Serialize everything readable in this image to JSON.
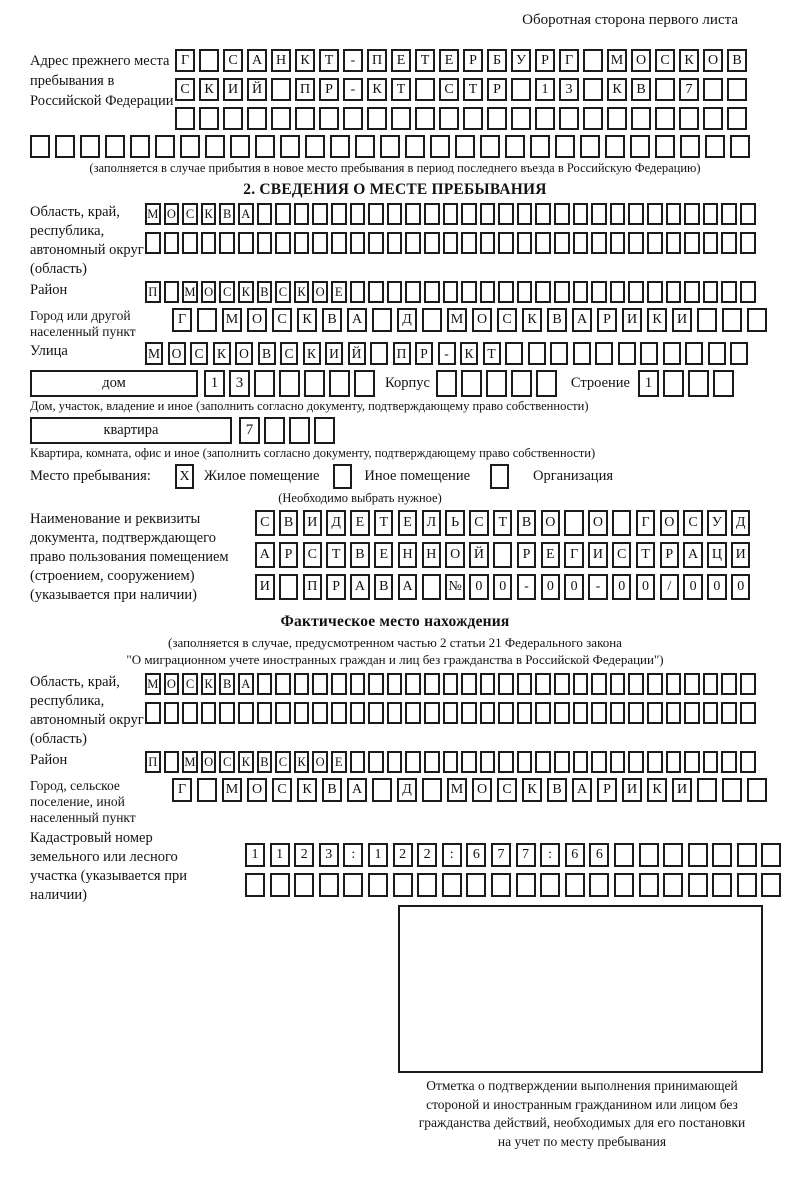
{
  "page": {
    "header_note": "Оборотная сторона первого листа"
  },
  "prev_address": {
    "label": "Адрес прежнего места пребывания в Российской Федерации",
    "rows": [
      {
        "value": "Г САНКТ-ПЕТЕРБУРГ МОСКОВ",
        "boxes": 24
      },
      {
        "value": "СКИЙ ПР-КТ СТР 13 КВ 7",
        "boxes": 24
      },
      {
        "value": "",
        "boxes": 24
      },
      {
        "value": "",
        "boxes": 29
      }
    ],
    "caption": "(заполняется в случае прибытия в новое место пребывания в период последнего въезда в Российскую Федерацию)"
  },
  "section2": {
    "title": "2. СВЕДЕНИЯ О МЕСТЕ ПРЕБЫВАНИЯ",
    "region": {
      "label": "Область, край, республика, автономный округ (область)",
      "rows": [
        {
          "value": "МОСКВА",
          "boxes": 33
        },
        {
          "value": "",
          "boxes": 33
        }
      ]
    },
    "district": {
      "label": "Район",
      "row": {
        "value": "П МОСКВСКОЕ",
        "boxes": 33
      }
    },
    "city": {
      "label": "Город или другой населенный пункт",
      "row": {
        "value": "Г МОСКВА Д МОСКВАРИКИ",
        "boxes": 24
      }
    },
    "street": {
      "label": "Улица",
      "row": {
        "value": "МОСКОВСКИЙ ПР-КТ",
        "boxes": 27
      }
    },
    "house": {
      "box_label": "дом",
      "row": {
        "value": "13",
        "boxes": 7
      },
      "korpus_label": "Корпус",
      "korpus_row": {
        "value": "",
        "boxes": 5
      },
      "stroenie_label": "Строение",
      "stroenie_row": {
        "value": "1",
        "boxes": 4
      },
      "caption": "Дом, участок, владение и иное (заполнить согласно документу, подтверждающему право собственности)"
    },
    "apartment": {
      "box_label": "квартира",
      "row": {
        "value": "7",
        "boxes": 4
      },
      "caption": "Квартира, комната, офис и иное (заполнить согласно документу, подтверждающему право собственности)"
    },
    "stay_type": {
      "label": "Место пребывания:",
      "checked_mark": "X",
      "option1": "Жилое помещение",
      "option2": "Иное помещение",
      "option3": "Организация",
      "hint": "(Необходимо выбрать нужное)"
    },
    "document": {
      "label": "Наименование и реквизиты документа, подтверждающего право пользования помещением (строением, сооружением) (указывается при наличии)",
      "rows": [
        {
          "value": "СВИДЕТЕЛЬСТВО О ГОСУД",
          "boxes": 21
        },
        {
          "value": "АРСТВЕННОЙ РЕГИСТРАЦИ",
          "boxes": 21
        },
        {
          "value": "И ПРАВА №00-00-00/000",
          "boxes": 21
        }
      ]
    }
  },
  "actual_location": {
    "title": "Фактическое место нахождения",
    "caption_line1": "(заполняется в случае, предусмотренном частью 2 статьи 21 Федерального закона",
    "caption_line2": "\"О миграционном учете иностранных граждан и лиц без гражданства в Российской Федерации\")",
    "region": {
      "label": "Область, край, республика, автономный округ (область)",
      "rows": [
        {
          "value": "МОСКВА",
          "boxes": 33
        },
        {
          "value": "",
          "boxes": 33
        }
      ]
    },
    "district": {
      "label": "Район",
      "row": {
        "value": "П МОСКВСКОЕ",
        "boxes": 33
      }
    },
    "city": {
      "label": "Город, сельское поселение, иной населенный пункт",
      "row": {
        "value": "Г МОСКВА Д МОСКВАРИКИ",
        "boxes": 24
      }
    },
    "cadastral": {
      "label": "Кадастровый номер земельного или лесного участка (указывается при наличии)",
      "rows": [
        {
          "value": "1123:122:677:66",
          "boxes": 22
        },
        {
          "value": "",
          "boxes": 22
        }
      ]
    },
    "stamp_caption_lines": [
      "Отметка о подтверждении выполнения принимающей",
      "стороной и иностранным гражданином или лицом без",
      "гражданства действий, необходимых для его постановки",
      "на учет по месту пребывания"
    ]
  }
}
